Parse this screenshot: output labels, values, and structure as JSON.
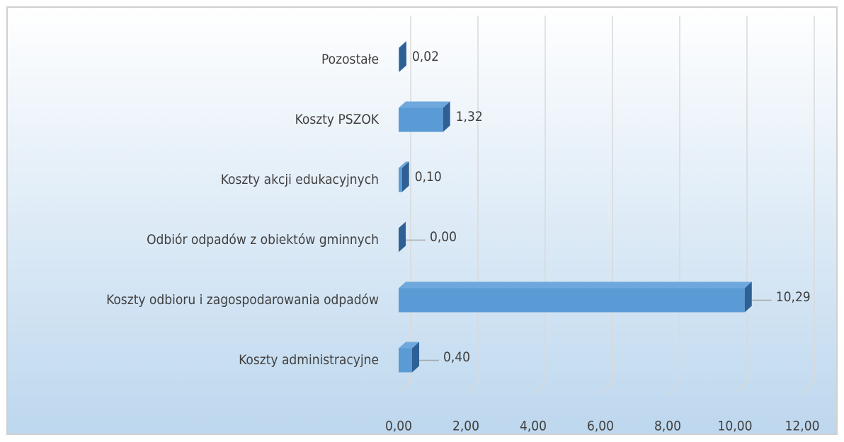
{
  "chart_data": {
    "type": "bar3d_horizontal",
    "categories": [
      "Pozostałe",
      "Koszty PSZOK",
      "Koszty akcji edukacyjnych",
      "Odbiór odpadów z obiektów gminnych",
      "Koszty odbioru i zagospodarowania odpadów",
      "Koszty administracyjne"
    ],
    "values": [
      0.02,
      1.32,
      0.1,
      0.0,
      10.29,
      0.4
    ],
    "value_labels": [
      "0,02",
      "1,32",
      "0,10",
      "0,00",
      "10,29",
      "0,40"
    ],
    "color": "#5b9bd5",
    "xlim": [
      0,
      12
    ],
    "xticks": [
      {
        "value": 0,
        "label": "0,00"
      },
      {
        "value": 2,
        "label": "2,00"
      },
      {
        "value": 4,
        "label": "4,00"
      },
      {
        "value": 6,
        "label": "6,00"
      },
      {
        "value": 8,
        "label": "8,00"
      },
      {
        "value": 10,
        "label": "10,00"
      },
      {
        "value": 12,
        "label": "12,00"
      }
    ],
    "grid": true
  }
}
